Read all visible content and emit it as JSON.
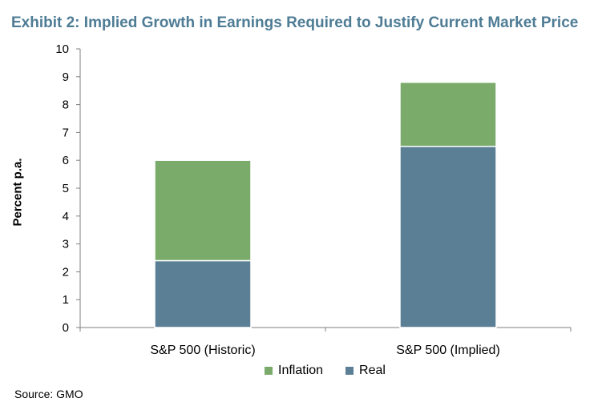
{
  "chart_data": {
    "type": "bar",
    "stacked": true,
    "title": "Exhibit 2: Implied Growth in Earnings Required to Justify Current Market Price",
    "xlabel": "",
    "ylabel": "Percent p.a.",
    "ylim": [
      0,
      10
    ],
    "yticks": [
      "0",
      "1",
      "2",
      "3",
      "4",
      "5",
      "6",
      "7",
      "8",
      "9",
      "10"
    ],
    "categories": [
      "S&P 500 (Historic)",
      "S&P 500 (Implied)"
    ],
    "series": [
      {
        "name": "Real",
        "color": "#5b7f95",
        "values": [
          2.4,
          6.5
        ]
      },
      {
        "name": "Inflation",
        "color": "#7aab6b",
        "values": [
          3.6,
          2.3
        ]
      }
    ],
    "legend": {
      "position": "bottom",
      "order": [
        "Inflation",
        "Real"
      ]
    },
    "grid": false
  },
  "source": "Source: GMO"
}
